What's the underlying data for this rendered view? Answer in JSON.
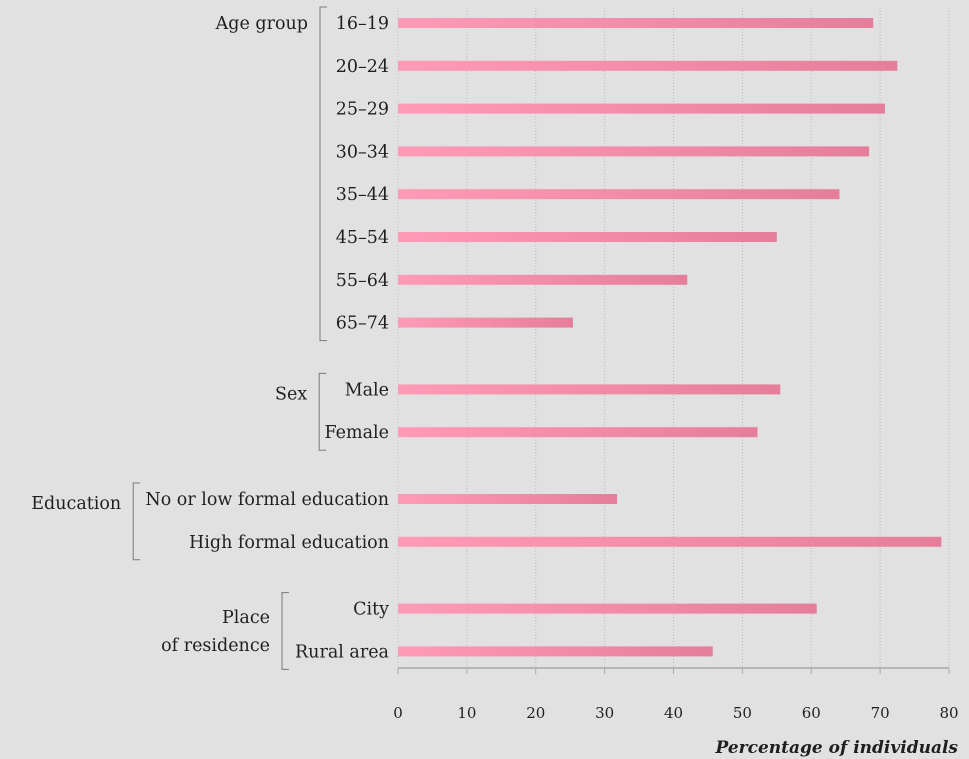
{
  "chart_data": {
    "type": "bar",
    "orientation": "horizontal",
    "xlabel": "Percentage of individuals",
    "xlim": [
      0,
      80
    ],
    "xticks": [
      "0",
      "10",
      "20",
      "30",
      "40",
      "50",
      "60",
      "70",
      "80"
    ],
    "grid": "vertical dotted",
    "bar_color": "#f08aa6",
    "groups": [
      {
        "name": [
          "Age group"
        ],
        "categories": [
          "16–19",
          "20–24",
          "25–29",
          "30–34",
          "35–44",
          "45–54",
          "55–64",
          "65–74"
        ],
        "values": [
          69,
          72.5,
          70.7,
          68.4,
          64.1,
          55,
          42,
          25.4
        ]
      },
      {
        "name": [
          "Sex"
        ],
        "categories": [
          "Male",
          "Female"
        ],
        "values": [
          55.5,
          52.2
        ]
      },
      {
        "name": [
          "Education"
        ],
        "categories": [
          "No or low formal education",
          "High formal education"
        ],
        "values": [
          31.8,
          78.9
        ]
      },
      {
        "name": [
          "Place",
          "of residence"
        ],
        "categories": [
          "City",
          "Rural area"
        ],
        "values": [
          60.8,
          45.7
        ]
      }
    ]
  }
}
